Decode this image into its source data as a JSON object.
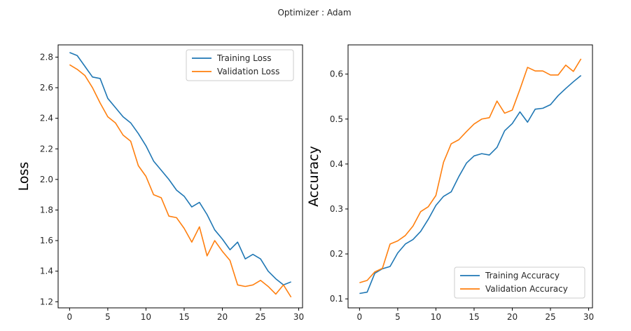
{
  "figure": {
    "title": "Optimizer : Adam"
  },
  "chart_data": [
    {
      "type": "line",
      "title": "",
      "xlabel": "",
      "ylabel": "Loss",
      "xlim": [
        -1.5,
        30.5
      ],
      "ylim": [
        1.16,
        2.88
      ],
      "xticks": [
        0,
        5,
        10,
        15,
        20,
        25,
        30
      ],
      "yticks": [
        1.2,
        1.4,
        1.6,
        1.8,
        2.0,
        2.2,
        2.4,
        2.6,
        2.8
      ],
      "ytick_format": 1,
      "grid": false,
      "legend": "top-right",
      "x": [
        0,
        1,
        2,
        3,
        4,
        5,
        6,
        7,
        8,
        9,
        10,
        11,
        12,
        13,
        14,
        15,
        16,
        17,
        18,
        19,
        20,
        21,
        22,
        23,
        24,
        25,
        26,
        27,
        28,
        29
      ],
      "series": [
        {
          "name": "Training Loss",
          "color": "#1f77b4",
          "values": [
            2.83,
            2.81,
            2.74,
            2.67,
            2.66,
            2.53,
            2.47,
            2.41,
            2.37,
            2.3,
            2.22,
            2.12,
            2.06,
            2.0,
            1.93,
            1.89,
            1.82,
            1.85,
            1.77,
            1.67,
            1.61,
            1.54,
            1.59,
            1.48,
            1.51,
            1.48,
            1.4,
            1.35,
            1.31,
            1.33
          ]
        },
        {
          "name": "Validation Loss",
          "color": "#ff7f0e",
          "values": [
            2.75,
            2.72,
            2.68,
            2.6,
            2.5,
            2.41,
            2.37,
            2.29,
            2.25,
            2.09,
            2.02,
            1.9,
            1.88,
            1.76,
            1.75,
            1.68,
            1.59,
            1.69,
            1.5,
            1.6,
            1.53,
            1.47,
            1.31,
            1.3,
            1.31,
            1.34,
            1.3,
            1.25,
            1.31,
            1.23
          ]
        }
      ]
    },
    {
      "type": "line",
      "title": "",
      "xlabel": "",
      "ylabel": "Accuracy",
      "xlim": [
        -1.5,
        30.5
      ],
      "ylim": [
        0.08,
        0.665
      ],
      "xticks": [
        0,
        5,
        10,
        15,
        20,
        25,
        30
      ],
      "yticks": [
        0.1,
        0.2,
        0.3,
        0.4,
        0.5,
        0.6
      ],
      "ytick_format": 1,
      "grid": false,
      "legend": "bottom-right",
      "x": [
        0,
        1,
        2,
        3,
        4,
        5,
        6,
        7,
        8,
        9,
        10,
        11,
        12,
        13,
        14,
        15,
        16,
        17,
        18,
        19,
        20,
        21,
        22,
        23,
        24,
        25,
        26,
        27,
        28,
        29
      ],
      "series": [
        {
          "name": "Training Accuracy",
          "color": "#1f77b4",
          "values": [
            0.112,
            0.115,
            0.157,
            0.167,
            0.172,
            0.202,
            0.222,
            0.232,
            0.25,
            0.277,
            0.308,
            0.328,
            0.338,
            0.372,
            0.402,
            0.418,
            0.423,
            0.42,
            0.437,
            0.474,
            0.49,
            0.516,
            0.493,
            0.522,
            0.524,
            0.532,
            0.552,
            0.568,
            0.583,
            0.597
          ]
        },
        {
          "name": "Validation Accuracy",
          "color": "#ff7f0e",
          "values": [
            0.136,
            0.141,
            0.16,
            0.168,
            0.222,
            0.229,
            0.241,
            0.262,
            0.294,
            0.305,
            0.33,
            0.404,
            0.445,
            0.454,
            0.472,
            0.489,
            0.5,
            0.503,
            0.54,
            0.513,
            0.52,
            0.566,
            0.615,
            0.607,
            0.607,
            0.598,
            0.598,
            0.62,
            0.606,
            0.634
          ]
        }
      ]
    }
  ]
}
